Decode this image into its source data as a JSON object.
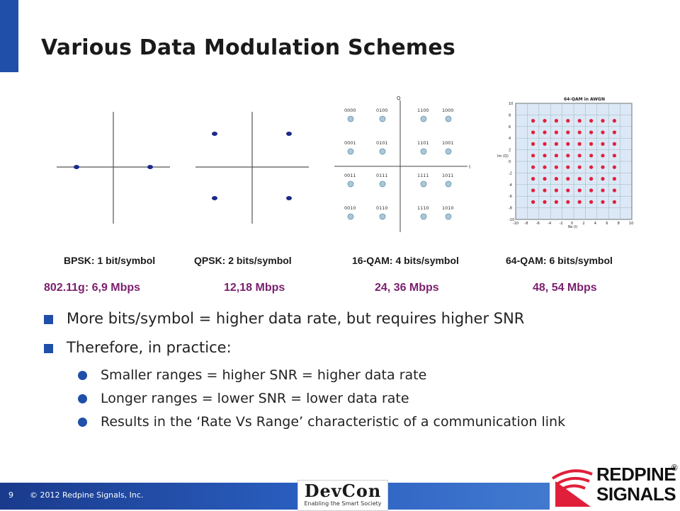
{
  "title": "Various Data Modulation Schemes",
  "captions": [
    "BPSK: 1 bit/symbol",
    "QPSK: 2 bits/symbol",
    "16-QAM: 4 bits/symbol",
    "64-QAM: 6 bits/symbol"
  ],
  "rates": [
    "802.11g:   6,9 Mbps",
    "12,18 Mbps",
    "24, 36 Mbps",
    "48, 54 Mbps"
  ],
  "qam16": {
    "axis_q": "Q",
    "axis_i": "I",
    "labels": [
      "0000",
      "0100",
      "1100",
      "1000",
      "0001",
      "0101",
      "1101",
      "1001",
      "0011",
      "0111",
      "1111",
      "1011",
      "0010",
      "0110",
      "1110",
      "1010"
    ]
  },
  "qam64": {
    "title": "64-QAM in AWGN",
    "xlabel": "Re (I)",
    "ylabel": "Im (Q)",
    "ticks": [
      "-10",
      "-8",
      "-6",
      "-4",
      "-2",
      "0",
      "2",
      "4",
      "6",
      "8",
      "10"
    ]
  },
  "bullets": [
    "More bits/symbol = higher data rate, but requires higher SNR",
    "Therefore, in practice:"
  ],
  "sub_bullets": [
    "Smaller ranges = higher SNR = higher data rate",
    "Longer ranges = lower SNR = lower data rate",
    "Results in the ‘Rate Vs Range’ characteristic of a communication link"
  ],
  "footer": {
    "slide_number": "9",
    "copyright": "© 2012 Redpine Signals, Inc.",
    "devcon": "DevCon",
    "devcon_tagline": "Enabling the Smart Society",
    "brand_line1": "REDPINE",
    "brand_line2": "SIGNALS",
    "brand_reg": "®"
  },
  "colors": {
    "accent": "#1f4fa8",
    "rate_text": "#7a1f6e",
    "qam64_points": "#e0203a",
    "constellation_points": "#1a2a8a"
  }
}
